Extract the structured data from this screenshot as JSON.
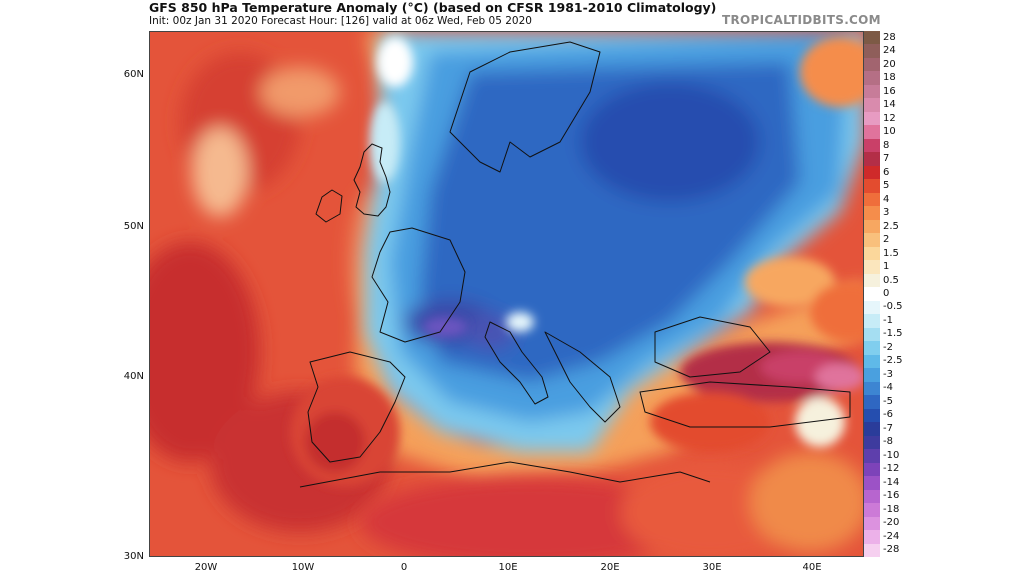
{
  "header": {
    "title": "GFS 850 hPa Temperature Anomaly (°C) (based on CFSR 1981-2010 Climatology)",
    "subtitle": "Init: 00z Jan 31 2020   Forecast Hour: [126]   valid at 06z Wed, Feb 05 2020",
    "brand": "TROPICALTIDBITS.COM"
  },
  "axes": {
    "lat_labels": [
      "60N",
      "50N",
      "40N",
      "30N"
    ],
    "lon_labels": [
      "20W",
      "10W",
      "0",
      "10E",
      "20E",
      "30E",
      "40E"
    ]
  },
  "colorbar": {
    "levels": [
      "28",
      "24",
      "20",
      "18",
      "16",
      "14",
      "12",
      "10",
      "8",
      "7",
      "6",
      "5",
      "4",
      "3",
      "2.5",
      "2",
      "1.5",
      "1",
      "0.5",
      "0",
      "-0.5",
      "-1",
      "-1.5",
      "-2",
      "-2.5",
      "-3",
      "-4",
      "-5",
      "-6",
      "-7",
      "-8",
      "-10",
      "-12",
      "-14",
      "-16",
      "-18",
      "-20",
      "-24",
      "-28"
    ],
    "colors": [
      "#7d5a45",
      "#8f5e5a",
      "#a2646f",
      "#b56f85",
      "#c77c99",
      "#d98bad",
      "#e79bc2",
      "#e0739c",
      "#c94068",
      "#b32e47",
      "#cf2a2a",
      "#e34c2f",
      "#ef6e3b",
      "#f58d4b",
      "#f7a761",
      "#f9c07c",
      "#fbd79b",
      "#fbe6bd",
      "#f6f1dd",
      "#ffffff",
      "#e6f6fb",
      "#c7ecf7",
      "#a5def2",
      "#80ceee",
      "#5fb9e8",
      "#4aa0df",
      "#3d85d2",
      "#2f67c2",
      "#254eaf",
      "#2a3c9a",
      "#3e3b9e",
      "#5e3fac",
      "#7d43b9",
      "#9c52c6",
      "#b765cf",
      "#cc7ad7",
      "#dc92df",
      "#ecb1e9",
      "#f6d0f0"
    ]
  },
  "map": {
    "features": [
      "warm-anomaly-atlantic",
      "cold-anomaly-europe",
      "warm-anomaly-iberia",
      "warm-anomaly-north-africa",
      "warm-anomaly-turkey-black-sea",
      "warm-anomaly-eastern-europe"
    ]
  }
}
